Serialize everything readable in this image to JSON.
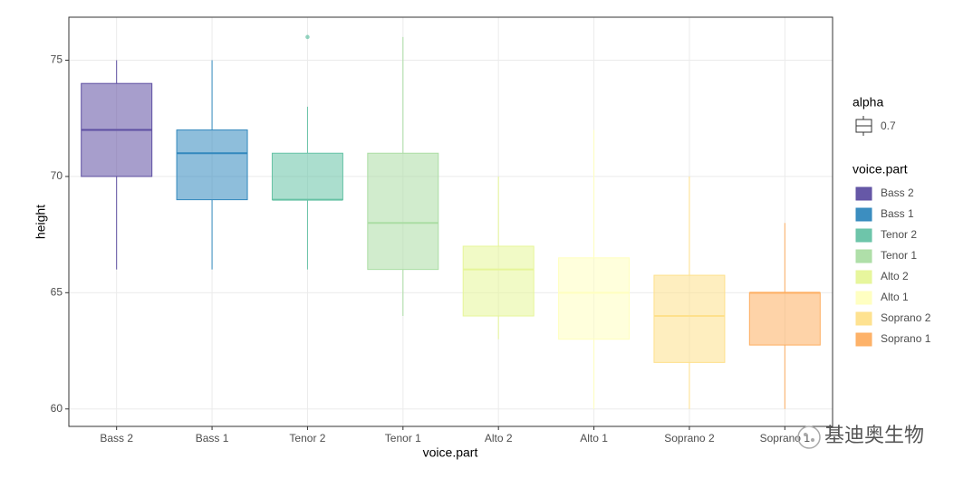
{
  "chart_data": {
    "type": "box",
    "x_label": "voice.part",
    "y_label": "height",
    "categories": [
      "Bass 2",
      "Bass 1",
      "Tenor 2",
      "Tenor 1",
      "Alto 2",
      "Alto 1",
      "Soprano 2",
      "Soprano 1"
    ],
    "series": [
      {
        "name": "Bass 2",
        "color": "#5E4FA2",
        "low": 66,
        "q1": 70,
        "median": 72,
        "q3": 74,
        "high": 75,
        "outliers": []
      },
      {
        "name": "Bass 1",
        "color": "#3288BD",
        "low": 66,
        "q1": 69,
        "median": 71,
        "q3": 72,
        "high": 75,
        "outliers": []
      },
      {
        "name": "Tenor 2",
        "color": "#66C2A5",
        "low": 66,
        "q1": 69,
        "median": 69,
        "q3": 71,
        "high": 73,
        "outliers": [
          76
        ]
      },
      {
        "name": "Tenor 1",
        "color": "#ABDDA4",
        "low": 64,
        "q1": 66,
        "median": 68,
        "q3": 71,
        "high": 76,
        "outliers": []
      },
      {
        "name": "Alto 2",
        "color": "#E6F598",
        "low": 63,
        "q1": 64,
        "median": 66,
        "q3": 67,
        "high": 70,
        "outliers": []
      },
      {
        "name": "Alto 1",
        "color": "#FFFFBF",
        "low": 60,
        "q1": 63,
        "median": 65,
        "q3": 66.5,
        "high": 72,
        "outliers": []
      },
      {
        "name": "Soprano 2",
        "color": "#FEE08B",
        "low": 60,
        "q1": 62,
        "median": 64,
        "q3": 65.75,
        "high": 70,
        "outliers": []
      },
      {
        "name": "Soprano 1",
        "color": "#FDAE61",
        "low": 60,
        "q1": 62.75,
        "median": 65,
        "q3": 65,
        "high": 68,
        "outliers": []
      }
    ],
    "ylim": [
      59.25,
      76.85
    ],
    "yticks": [
      60,
      65,
      70,
      75
    ],
    "grid": true,
    "alpha_legend_title": "alpha",
    "alpha_legend_value": "0.7",
    "legend_title": "voice.part",
    "legend_position": "right",
    "watermark": "基迪奥生物"
  }
}
